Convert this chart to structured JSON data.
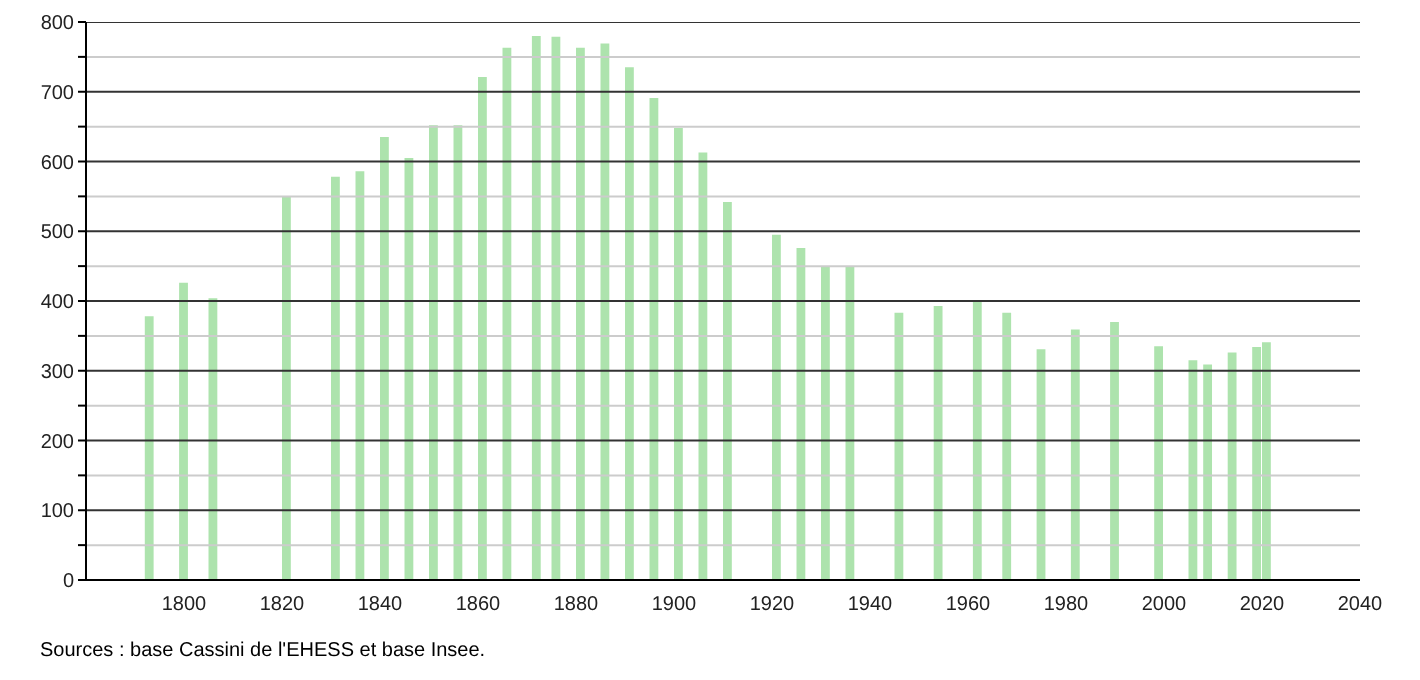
{
  "chart_data": {
    "type": "bar",
    "x": [
      1793,
      1800,
      1806,
      1821,
      1831,
      1836,
      1841,
      1846,
      1851,
      1856,
      1861,
      1866,
      1872,
      1876,
      1881,
      1886,
      1891,
      1896,
      1901,
      1906,
      1911,
      1921,
      1926,
      1931,
      1936,
      1946,
      1954,
      1962,
      1968,
      1975,
      1982,
      1990,
      1999,
      2006,
      2009,
      2014,
      2019,
      2021
    ],
    "values": [
      378,
      426,
      404,
      550,
      578,
      586,
      635,
      605,
      652,
      652,
      721,
      763,
      780,
      779,
      763,
      769,
      735,
      691,
      648,
      613,
      542,
      495,
      476,
      450,
      450,
      383,
      393,
      399,
      383,
      331,
      359,
      370,
      335,
      315,
      309,
      326,
      334,
      341
    ],
    "color": "#ade3ad",
    "xlim": [
      1780,
      2040
    ],
    "xticks": [
      1800,
      1820,
      1840,
      1860,
      1880,
      1900,
      1920,
      1940,
      1960,
      1980,
      2000,
      2020,
      2040
    ],
    "ylim": [
      0,
      800
    ],
    "yticks": [
      0,
      {
        "value": 50,
        "label": null
      },
      100,
      {
        "value": 150,
        "label": null
      },
      200,
      {
        "value": 250,
        "label": null
      },
      300,
      {
        "value": 350,
        "label": null
      },
      400,
      {
        "value": 450,
        "label": null
      },
      500,
      {
        "value": 550,
        "label": null
      },
      600,
      {
        "value": 650,
        "label": null
      },
      700,
      {
        "value": 750,
        "label": null
      },
      800
    ],
    "grid": "y",
    "annotations": [
      "Sources : base Cassini de l'EHESS et base Insee."
    ]
  }
}
